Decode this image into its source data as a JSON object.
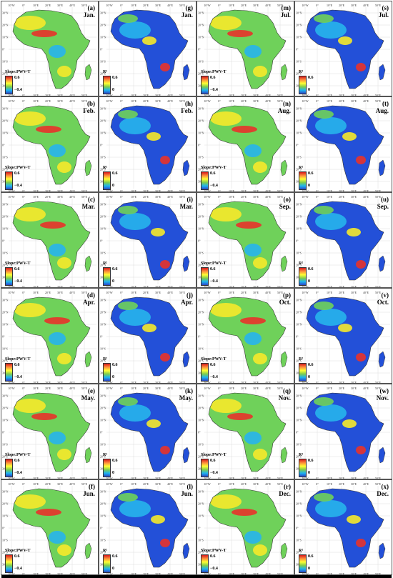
{
  "lon_ticks": [
    "10°W",
    "0°",
    "10°E",
    "20°E",
    "30°E",
    "40°E",
    "50°E"
  ],
  "lat_ticks": [
    "30°N",
    "20°N",
    "10°N",
    "0°",
    "10°S",
    "20°S",
    "30°S"
  ],
  "legend": {
    "slope": {
      "title": "Slope:PWV-T",
      "high": "0.6",
      "low": "−0.4"
    },
    "r2": {
      "title": "R²",
      "high": "0.6",
      "low": "0"
    }
  },
  "columns": [
    {
      "kind": "slope",
      "panels": [
        {
          "id": "(a)",
          "month": "Jan."
        },
        {
          "id": "(b)",
          "month": "Feb."
        },
        {
          "id": "(c)",
          "month": "Mar."
        },
        {
          "id": "(d)",
          "month": "Apr."
        },
        {
          "id": "(e)",
          "month": "May."
        },
        {
          "id": "(f)",
          "month": "Jun."
        }
      ]
    },
    {
      "kind": "r2",
      "panels": [
        {
          "id": "(g)",
          "month": "Jan."
        },
        {
          "id": "(h)",
          "month": "Feb."
        },
        {
          "id": "(i)",
          "month": "Mar."
        },
        {
          "id": "(j)",
          "month": "Apr."
        },
        {
          "id": "(k)",
          "month": "May."
        },
        {
          "id": "(l)",
          "month": "Jun."
        }
      ]
    },
    {
      "kind": "slope",
      "panels": [
        {
          "id": "(m)",
          "month": "Jul."
        },
        {
          "id": "(n)",
          "month": "Aug."
        },
        {
          "id": "(o)",
          "month": "Sep."
        },
        {
          "id": "(p)",
          "month": "Oct."
        },
        {
          "id": "(q)",
          "month": "Nov."
        },
        {
          "id": "(r)",
          "month": "Dec."
        }
      ]
    },
    {
      "kind": "r2",
      "panels": [
        {
          "id": "(s)",
          "month": "Jul."
        },
        {
          "id": "(t)",
          "month": "Aug."
        },
        {
          "id": "(u)",
          "month": "Sep."
        },
        {
          "id": "(v)",
          "month": "Oct."
        },
        {
          "id": "(w)",
          "month": "Nov."
        },
        {
          "id": "(x)",
          "month": "Dec."
        }
      ]
    }
  ],
  "colors": {
    "slope_fill": "#6fd15a",
    "r2_fill": "#2350d8",
    "hot": "#e8322a",
    "warm": "#f6e92a",
    "cool": "#27b4ec"
  }
}
